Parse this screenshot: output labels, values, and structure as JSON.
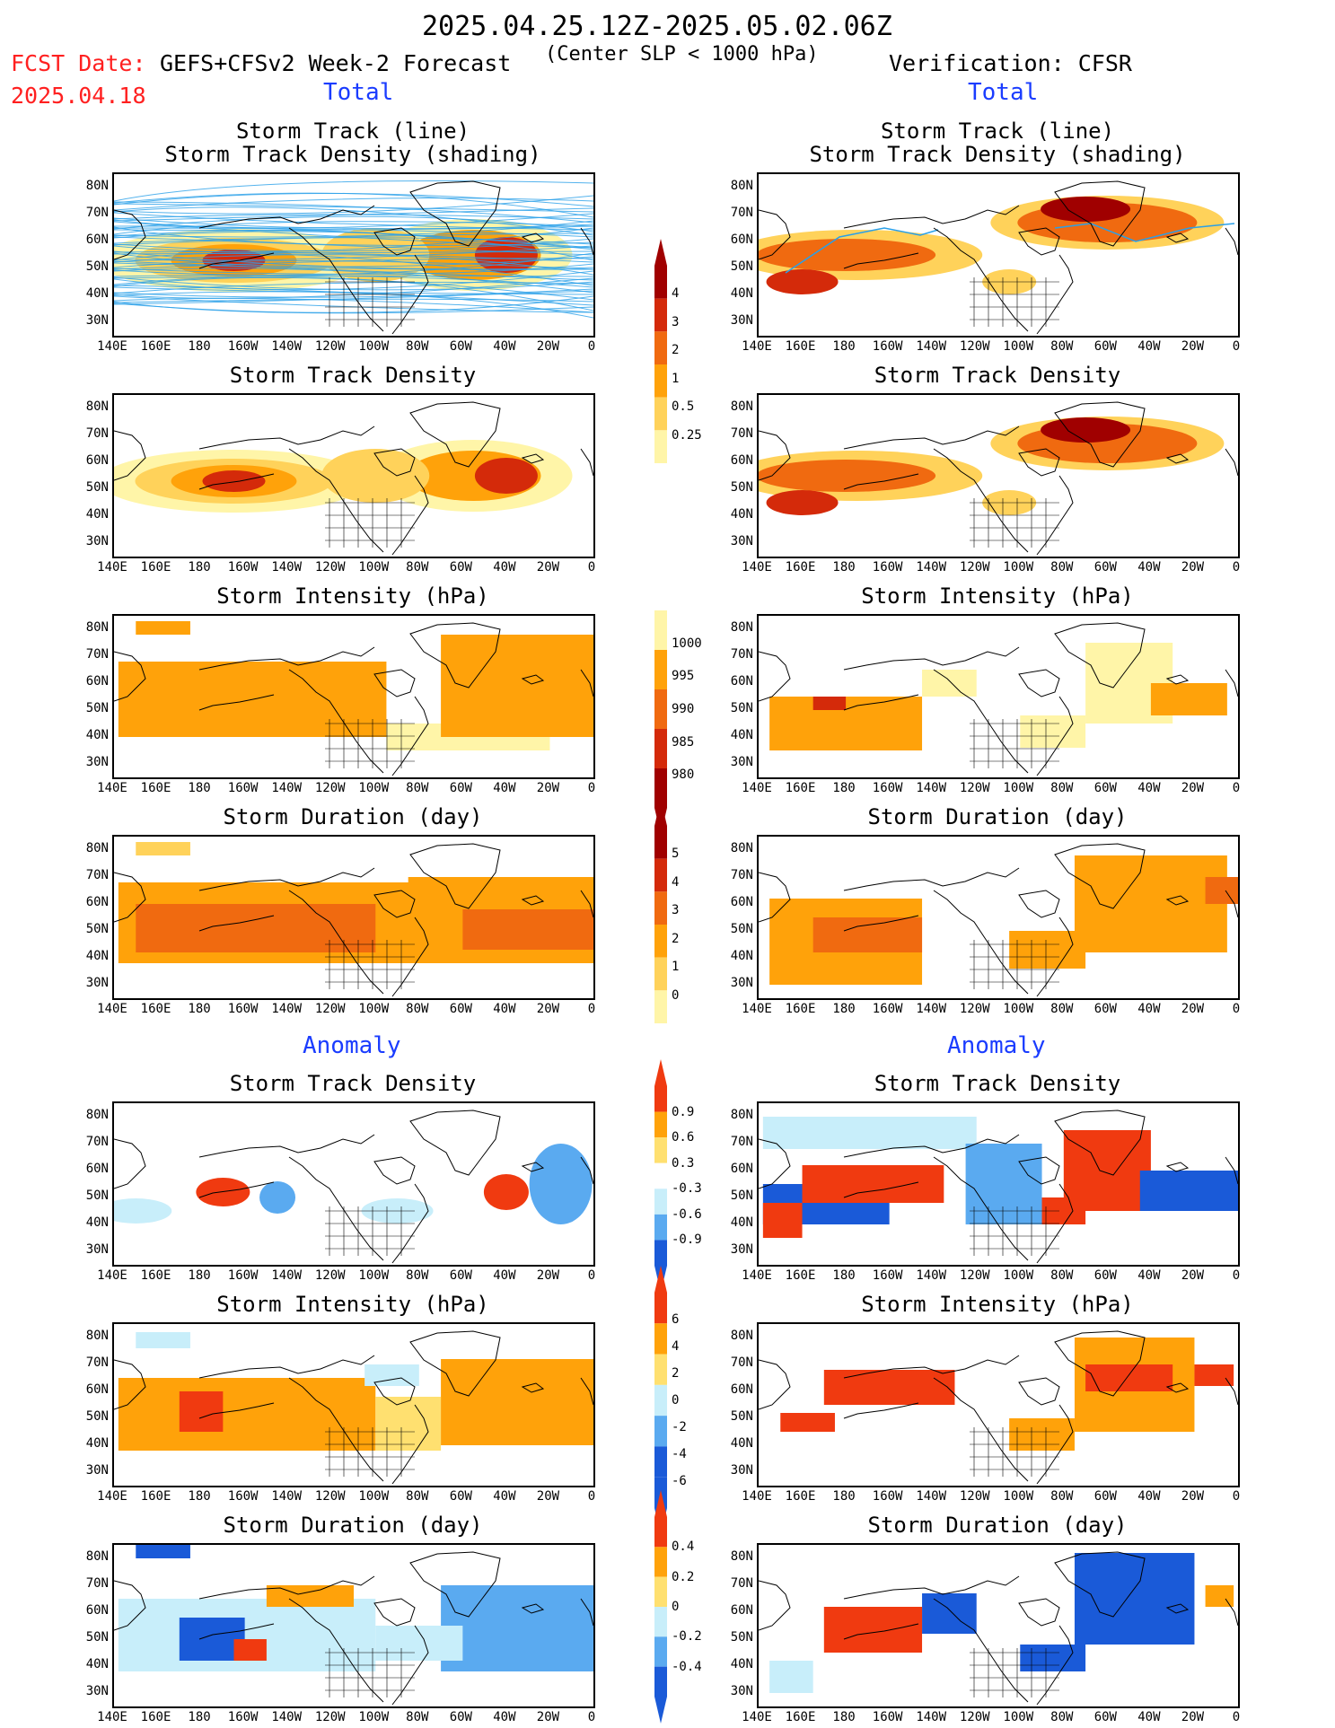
{
  "header": {
    "period": "2025.04.25.12Z-2025.05.02.06Z",
    "fcst_date_label": "FCST Date:",
    "fcst_date": "2025.04.18",
    "model": "GEFS+CFSv2 Week-2 Forecast",
    "criterion": "(Center SLP < 1000 hPa)",
    "verification": "Verification: CFSR"
  },
  "sections": {
    "total": "Total",
    "anomaly": "Anomaly"
  },
  "panel_titles": {
    "track_line": "Storm Track (line)",
    "track_shading": "Storm Track Density (shading)",
    "density": "Storm Track Density",
    "intensity": "Storm Intensity (hPa)",
    "duration": "Storm Duration (day)"
  },
  "axes": {
    "lat": [
      "80N",
      "70N",
      "60N",
      "50N",
      "40N",
      "30N"
    ],
    "lon": [
      "140E",
      "160E",
      "180",
      "160W",
      "140W",
      "120W",
      "100W",
      "80W",
      "60W",
      "40W",
      "20W",
      "0"
    ]
  },
  "colorbars": {
    "density_total": [
      "4",
      "3",
      "2",
      "1",
      "0.5",
      "0.25"
    ],
    "intensity_total": [
      "1000",
      "995",
      "990",
      "985",
      "980"
    ],
    "duration_total": [
      "5",
      "4",
      "3",
      "2",
      "1",
      "0"
    ],
    "density_anom": [
      "0.9",
      "0.6",
      "0.3",
      "-0.3",
      "-0.6",
      "-0.9"
    ],
    "intensity_anom": [
      "6",
      "4",
      "2",
      "0",
      "-2",
      "-4",
      "-6"
    ],
    "duration_anom": [
      "0.4",
      "0.2",
      "0",
      "-0.2",
      "-0.4"
    ]
  },
  "colors": {
    "seq": [
      "#fff5a8",
      "#ffd25a",
      "#ffa20a",
      "#f06a10",
      "#d42a0a",
      "#a00000"
    ],
    "intensity": [
      "#fff5a8",
      "#ffa20a",
      "#f06a10",
      "#d42a0a",
      "#a00000"
    ],
    "anom_pos": [
      "#ffe070",
      "#ffa20a",
      "#f03a10"
    ],
    "anom_neg": [
      "#c8eefa",
      "#5aaaf0",
      "#1a5ad8"
    ],
    "track_line": "#2aa0e8",
    "blue_text": "#1a3cff",
    "red_text": "#ff2020"
  }
}
